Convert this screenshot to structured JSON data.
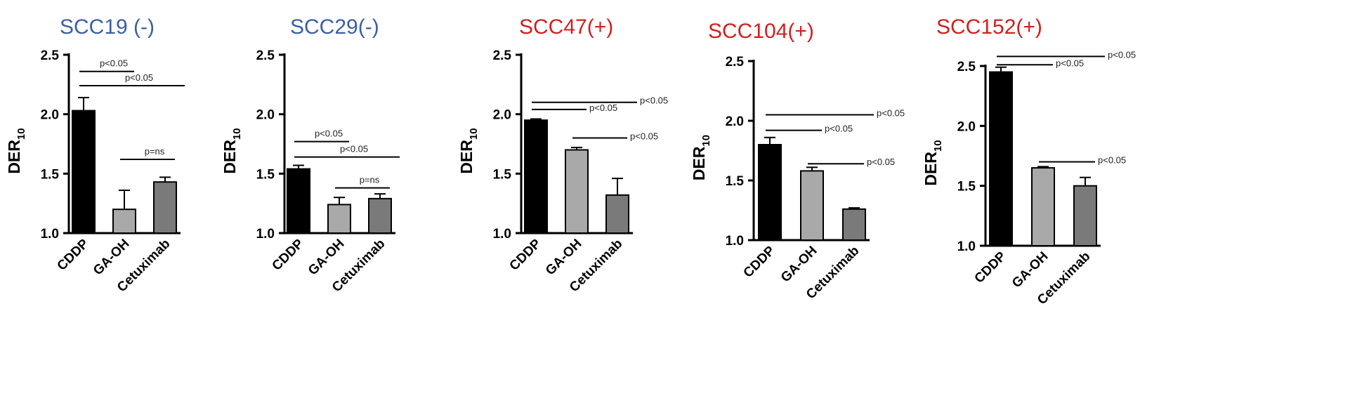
{
  "chart_data": [
    {
      "type": "bar",
      "title": "SCC19 (-)",
      "title_color": "#3b5ea8",
      "ylabel": "DER",
      "ylabel_sub": "10",
      "categories": [
        "CDDP",
        "GA-OH",
        "Cetuximab"
      ],
      "values": [
        2.03,
        1.2,
        1.43
      ],
      "errors": [
        0.11,
        0.16,
        0.04
      ],
      "bar_colors": [
        "#000000",
        "#a9a9a9",
        "#7a7a7a"
      ],
      "ylim": [
        1.0,
        2.5
      ],
      "yticks": [
        "1.0",
        "1.5",
        "2.0",
        "2.5"
      ],
      "significance": [
        {
          "from": 0,
          "to": 1,
          "y": 2.36,
          "label": "p<0.05"
        },
        {
          "from": 0,
          "to": 2,
          "y": 2.24,
          "label": "p<0.05"
        },
        {
          "from": 1,
          "to": 2,
          "y": 1.62,
          "label": "p=ns"
        }
      ]
    },
    {
      "type": "bar",
      "title": "SCC29(-)",
      "title_color": "#3b5ea8",
      "ylabel": "DER",
      "ylabel_sub": "10",
      "categories": [
        "CDDP",
        "GA-OH",
        "Cetuximab"
      ],
      "values": [
        1.54,
        1.24,
        1.29
      ],
      "errors": [
        0.03,
        0.06,
        0.04
      ],
      "bar_colors": [
        "#000000",
        "#a9a9a9",
        "#7a7a7a"
      ],
      "ylim": [
        1.0,
        2.5
      ],
      "yticks": [
        "1.0",
        "1.5",
        "2.0",
        "2.5"
      ],
      "significance": [
        {
          "from": 0,
          "to": 1,
          "y": 1.77,
          "label": "p<0.05"
        },
        {
          "from": 0,
          "to": 2,
          "y": 1.64,
          "label": "p<0.05"
        },
        {
          "from": 1,
          "to": 2,
          "y": 1.38,
          "label": "p=ns"
        }
      ]
    },
    {
      "type": "bar",
      "title": "SCC47(+)",
      "title_color": "#d11f1f",
      "ylabel": "DER",
      "ylabel_sub": "10",
      "categories": [
        "CDDP",
        "GA-OH",
        "Cetuximab"
      ],
      "values": [
        1.95,
        1.7,
        1.32
      ],
      "errors": [
        0.01,
        0.02,
        0.14
      ],
      "bar_colors": [
        "#000000",
        "#a9a9a9",
        "#7a7a7a"
      ],
      "ylim": [
        1.0,
        2.5
      ],
      "yticks": [
        "1.0",
        "1.5",
        "2.0",
        "2.5"
      ],
      "significance": [
        {
          "from": 0,
          "to": 2,
          "y": 2.1,
          "label": "p<0.05"
        },
        {
          "from": 0,
          "to": 1,
          "y": 2.04,
          "label": "p<0.05"
        },
        {
          "from": 1,
          "to": 2,
          "y": 1.8,
          "label": "p<0.05"
        }
      ]
    },
    {
      "type": "bar",
      "title": "SCC104(+)",
      "title_color": "#d11f1f",
      "ylabel": "DER",
      "ylabel_sub": "10",
      "categories": [
        "CDDP",
        "GA-OH",
        "Cetuximab"
      ],
      "values": [
        1.8,
        1.58,
        1.26
      ],
      "errors": [
        0.06,
        0.03,
        0.01
      ],
      "bar_colors": [
        "#000000",
        "#a9a9a9",
        "#7a7a7a"
      ],
      "ylim": [
        1.0,
        2.5
      ],
      "yticks": [
        "1.0",
        "1.5",
        "2.0",
        "2.5"
      ],
      "significance": [
        {
          "from": 0,
          "to": 2,
          "y": 2.05,
          "label": "p<0.05"
        },
        {
          "from": 0,
          "to": 1,
          "y": 1.92,
          "label": "p<0.05"
        },
        {
          "from": 1,
          "to": 2,
          "y": 1.64,
          "label": "p<0.05"
        }
      ]
    },
    {
      "type": "bar",
      "title": "SCC152(+)",
      "title_color": "#d11f1f",
      "ylabel": "DER",
      "ylabel_sub": "10",
      "categories": [
        "CDDP",
        "GA-OH",
        "Cetuximab"
      ],
      "values": [
        2.45,
        1.65,
        1.5
      ],
      "errors": [
        0.04,
        0.01,
        0.07
      ],
      "bar_colors": [
        "#000000",
        "#a9a9a9",
        "#7a7a7a"
      ],
      "ylim": [
        1.0,
        2.5
      ],
      "yticks": [
        "1.0",
        "1.5",
        "2.0",
        "2.5"
      ],
      "significance": [
        {
          "from": 0,
          "to": 2,
          "y": 2.58,
          "label": "p<0.05"
        },
        {
          "from": 0,
          "to": 1,
          "y": 2.51,
          "label": "p<0.05"
        },
        {
          "from": 1,
          "to": 2,
          "y": 1.7,
          "label": "p<0.05"
        }
      ]
    }
  ]
}
